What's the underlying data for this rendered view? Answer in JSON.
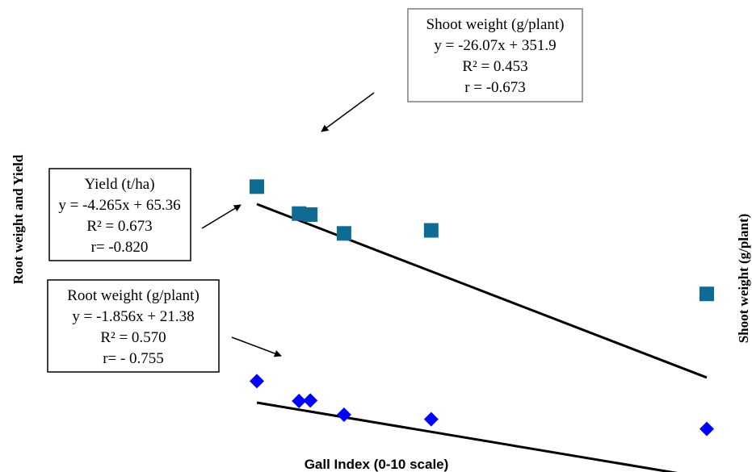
{
  "chart_data": {
    "type": "scatter",
    "title": "",
    "xlabel": "Gall Index (0-10 scale)",
    "ylabel_left": "Root weight and Yield",
    "ylabel_right": "Shoot weight (g/plant)",
    "grid": false,
    "legend": "none",
    "x_range": [
      0,
      8
    ],
    "series": [
      {
        "name": "Yield (t/ha)",
        "marker": "square",
        "color": "#0f6a94",
        "x": [
          0.0,
          0.75,
          0.95,
          1.55,
          3.1,
          8.0
        ],
        "y": [
          68.8,
          63.5,
          63.3,
          59.6,
          60.2,
          47.7
        ],
        "trend": {
          "slope": -4.265,
          "intercept": 65.36
        }
      },
      {
        "name": "Root weight (g/plant)",
        "marker": "diamond",
        "color": "#0000ff",
        "x": [
          0.0,
          0.75,
          0.95,
          1.55,
          3.1,
          8.0
        ],
        "y": [
          25.6,
          21.7,
          21.8,
          19.0,
          18.1,
          16.2
        ],
        "trend": {
          "slope": -1.856,
          "intercept": 21.38
        }
      }
    ],
    "annotations": [
      {
        "id": "shoot",
        "lines": [
          "Shoot weight (g/plant)",
          "y = -26.07x + 351.9",
          "R² = 0.453",
          "r = -0.673"
        ],
        "border": "#7f7f7f"
      },
      {
        "id": "yield",
        "lines": [
          "Yield (t/ha)",
          "y = -4.265x + 65.36",
          "R² = 0.673",
          "r= -0.820"
        ],
        "border": "#000000"
      },
      {
        "id": "root",
        "lines": [
          "Root weight (g/plant)",
          "y = -1.856x + 21.38",
          "R² = 0.570",
          "r= - 0.755"
        ],
        "border": "#000000"
      }
    ]
  }
}
